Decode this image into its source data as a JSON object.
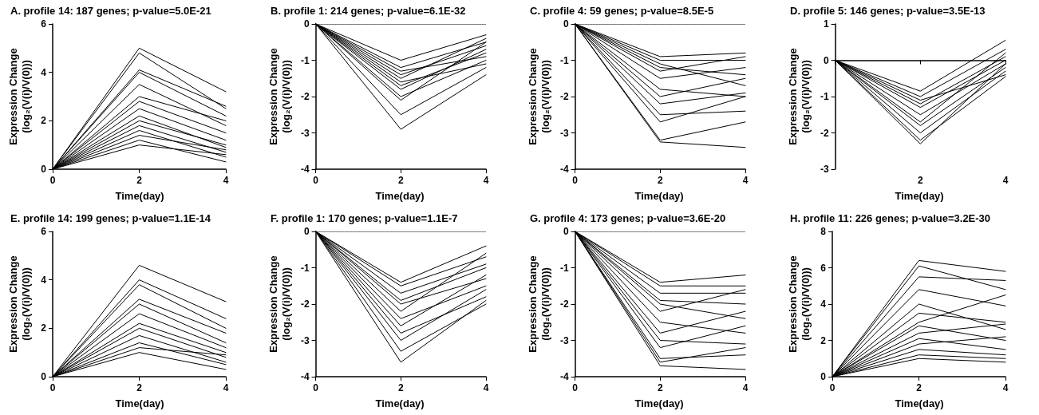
{
  "chart_data": [
    {
      "type": "line",
      "title": "A. profile 14: 187 genes; p-value=5.0E-21",
      "xlabel": "Time(day)",
      "ylabel": "Expression Change\n(log₂(V(i)/V(0)))",
      "x": [
        0,
        2,
        4
      ],
      "xlim": [
        0,
        4
      ],
      "xticks": [
        0,
        2,
        4
      ],
      "ylim": [
        0,
        6
      ],
      "yticks": [
        0,
        2,
        4,
        6
      ],
      "series": [
        {
          "color": "#000000",
          "values": [
            0,
            5.0,
            3.2
          ]
        },
        {
          "color": "#000000",
          "values": [
            0,
            4.8,
            2.5
          ]
        },
        {
          "color": "#000000",
          "values": [
            0,
            4.1,
            2.6
          ]
        },
        {
          "color": "#000000",
          "values": [
            0,
            4.0,
            2.2
          ]
        },
        {
          "color": "#000000",
          "values": [
            0,
            3.5,
            1.8
          ]
        },
        {
          "color": "#000000",
          "values": [
            0,
            3.0,
            2.0
          ]
        },
        {
          "color": "#000000",
          "values": [
            0,
            2.8,
            1.5
          ]
        },
        {
          "color": "#000000",
          "values": [
            0,
            2.5,
            1.2
          ]
        },
        {
          "color": "#000000",
          "values": [
            0,
            2.2,
            0.9
          ]
        },
        {
          "color": "#000000",
          "values": [
            0,
            2.0,
            1.0
          ]
        },
        {
          "color": "#000000",
          "values": [
            0,
            1.8,
            0.7
          ]
        },
        {
          "color": "#000000",
          "values": [
            0,
            1.6,
            0.5
          ]
        },
        {
          "color": "#000000",
          "values": [
            0,
            1.4,
            0.8
          ]
        },
        {
          "color": "#000000",
          "values": [
            0,
            1.2,
            0.3
          ]
        },
        {
          "color": "#000000",
          "values": [
            0,
            1.0,
            0.6
          ]
        }
      ]
    },
    {
      "type": "line",
      "title": "B. profile 1: 214 genes; p-value=6.1E-32",
      "xlabel": "Time(day)",
      "ylabel": "Expression Change\n(log₂(V(i)/V(0)))",
      "x": [
        0,
        2,
        4
      ],
      "xlim": [
        0,
        4
      ],
      "xticks": [
        0,
        2,
        4
      ],
      "ylim": [
        -4,
        0
      ],
      "yticks": [
        -4,
        -3,
        -2,
        -1,
        0
      ],
      "ref_lines": [
        {
          "axis": "y",
          "value": 0,
          "line_style": "dotted"
        }
      ],
      "series": [
        {
          "color": "#000000",
          "values": [
            0,
            -1.0,
            -0.3
          ]
        },
        {
          "color": "#000000",
          "values": [
            0,
            -1.2,
            -0.5
          ]
        },
        {
          "color": "#000000",
          "values": [
            0,
            -1.4,
            -0.6
          ]
        },
        {
          "color": "#000000",
          "values": [
            0,
            -1.5,
            -0.4
          ]
        },
        {
          "color": "#000000",
          "values": [
            0,
            -1.7,
            -0.8
          ]
        },
        {
          "color": "#000000",
          "values": [
            0,
            -1.8,
            -0.7
          ]
        },
        {
          "color": "#000000",
          "values": [
            0,
            -2.0,
            -1.0
          ]
        },
        {
          "color": "#000000",
          "values": [
            0,
            -2.1,
            -0.5
          ]
        },
        {
          "color": "#000000",
          "values": [
            0,
            -2.5,
            -1.2
          ]
        },
        {
          "color": "#000000",
          "values": [
            0,
            -2.9,
            -1.4
          ]
        },
        {
          "color": "#000000",
          "values": [
            0,
            -1.3,
            -0.9
          ]
        },
        {
          "color": "#000000",
          "values": [
            0,
            -1.6,
            -1.1
          ]
        }
      ]
    },
    {
      "type": "line",
      "title": "C. profile 4: 59 genes; p-value=8.5E-5",
      "xlabel": "Time(day)",
      "ylabel": "Expression Change\n(log₂(V(i)/V(0)))",
      "x": [
        0,
        2,
        4
      ],
      "xlim": [
        0,
        4
      ],
      "xticks": [
        0,
        2,
        4
      ],
      "ylim": [
        -4,
        0
      ],
      "yticks": [
        -4,
        -3,
        -2,
        -1,
        0
      ],
      "ref_lines": [
        {
          "axis": "y",
          "value": 0,
          "line_style": "dotted"
        }
      ],
      "series": [
        {
          "color": "#000000",
          "values": [
            0,
            -0.9,
            -0.8
          ]
        },
        {
          "color": "#000000",
          "values": [
            0,
            -1.0,
            -1.0
          ]
        },
        {
          "color": "#000000",
          "values": [
            0,
            -1.2,
            -1.4
          ]
        },
        {
          "color": "#000000",
          "values": [
            0,
            -1.3,
            -0.9
          ]
        },
        {
          "color": "#000000",
          "values": [
            0,
            -1.5,
            -1.2
          ]
        },
        {
          "color": "#000000",
          "values": [
            0,
            -1.8,
            -2.0
          ]
        },
        {
          "color": "#000000",
          "values": [
            0,
            -2.0,
            -1.5
          ]
        },
        {
          "color": "#000000",
          "values": [
            0,
            -2.2,
            -1.9
          ]
        },
        {
          "color": "#000000",
          "values": [
            0,
            -2.5,
            -2.4
          ]
        },
        {
          "color": "#000000",
          "values": [
            0,
            -2.7,
            -2.0
          ]
        },
        {
          "color": "#000000",
          "values": [
            0,
            -3.2,
            -2.7
          ]
        },
        {
          "color": "#000000",
          "values": [
            0,
            -3.25,
            -3.4
          ]
        },
        {
          "color": "#000000",
          "values": [
            0,
            -1.1,
            -1.7
          ]
        }
      ]
    },
    {
      "type": "line",
      "title": "D. profile 5: 146 genes; p-value=3.5E-13",
      "xlabel": "Time(day)",
      "ylabel": "Expression Change\n(log₂(V(i)/V(0)))",
      "x": [
        0,
        2,
        4
      ],
      "xlim": [
        0,
        4
      ],
      "xticks": [
        {
          "value": 0,
          "label": null
        },
        2,
        4
      ],
      "ylim": [
        -3,
        1
      ],
      "yticks": [
        -3,
        -2,
        -1,
        0,
        1
      ],
      "series": [
        {
          "color": "#000000",
          "values": [
            0,
            -0.85,
            0.55
          ]
        },
        {
          "color": "#000000",
          "values": [
            0,
            -1.0,
            0.3
          ]
        },
        {
          "color": "#000000",
          "values": [
            0,
            -1.2,
            0.1
          ]
        },
        {
          "color": "#000000",
          "values": [
            0,
            -1.3,
            0.0
          ]
        },
        {
          "color": "#000000",
          "values": [
            0,
            -1.5,
            -0.1
          ]
        },
        {
          "color": "#000000",
          "values": [
            0,
            -1.7,
            0.2
          ]
        },
        {
          "color": "#000000",
          "values": [
            0,
            -1.8,
            -0.2
          ]
        },
        {
          "color": "#000000",
          "values": [
            0,
            -2.0,
            -0.3
          ]
        },
        {
          "color": "#000000",
          "values": [
            0,
            -2.2,
            -0.45
          ]
        },
        {
          "color": "#000000",
          "values": [
            0,
            -2.3,
            -0.1
          ]
        },
        {
          "color": "#000000",
          "values": [
            0,
            -1.1,
            -0.4
          ]
        }
      ]
    },
    {
      "type": "line",
      "title": "E. profile 14: 199 genes; p-value=1.1E-14",
      "xlabel": "Time(day)",
      "ylabel": "Expression Change\n(log₂(V(i)/V(0)))",
      "x": [
        0,
        2,
        4
      ],
      "xlim": [
        0,
        4
      ],
      "xticks": [
        0,
        2,
        4
      ],
      "ylim": [
        0,
        6
      ],
      "yticks": [
        0,
        2,
        4,
        6
      ],
      "series": [
        {
          "color": "#000000",
          "values": [
            0,
            4.6,
            3.1
          ]
        },
        {
          "color": "#000000",
          "values": [
            0,
            4.0,
            2.4
          ]
        },
        {
          "color": "#000000",
          "values": [
            0,
            3.8,
            2.0
          ]
        },
        {
          "color": "#000000",
          "values": [
            0,
            3.2,
            1.8
          ]
        },
        {
          "color": "#000000",
          "values": [
            0,
            3.0,
            1.4
          ]
        },
        {
          "color": "#000000",
          "values": [
            0,
            2.6,
            1.2
          ]
        },
        {
          "color": "#000000",
          "values": [
            0,
            2.2,
            1.0
          ]
        },
        {
          "color": "#000000",
          "values": [
            0,
            2.0,
            0.8
          ]
        },
        {
          "color": "#000000",
          "values": [
            0,
            1.7,
            0.6
          ]
        },
        {
          "color": "#000000",
          "values": [
            0,
            1.4,
            0.5
          ]
        },
        {
          "color": "#000000",
          "values": [
            0,
            1.2,
            0.9
          ]
        },
        {
          "color": "#000000",
          "values": [
            0,
            1.0,
            0.3
          ]
        }
      ]
    },
    {
      "type": "line",
      "title": "F. profile 1: 170 genes; p-value=1.1E-7",
      "xlabel": "Time(day)",
      "ylabel": "Expression Change\n(log₂(V(i)/V(0)))",
      "x": [
        0,
        2,
        4
      ],
      "xlim": [
        0,
        4
      ],
      "xticks": [
        0,
        2,
        4
      ],
      "ylim": [
        -4,
        0
      ],
      "yticks": [
        -4,
        -3,
        -2,
        -1,
        0
      ],
      "ref_lines": [
        {
          "axis": "y",
          "value": 0,
          "line_style": "dotted"
        }
      ],
      "series": [
        {
          "color": "#000000",
          "values": [
            0,
            -1.4,
            -0.4
          ]
        },
        {
          "color": "#000000",
          "values": [
            0,
            -1.5,
            -0.7
          ]
        },
        {
          "color": "#000000",
          "values": [
            0,
            -1.7,
            -0.9
          ]
        },
        {
          "color": "#000000",
          "values": [
            0,
            -1.9,
            -1.0
          ]
        },
        {
          "color": "#000000",
          "values": [
            0,
            -2.0,
            -1.3
          ]
        },
        {
          "color": "#000000",
          "values": [
            0,
            -2.2,
            -0.6
          ]
        },
        {
          "color": "#000000",
          "values": [
            0,
            -2.4,
            -1.5
          ]
        },
        {
          "color": "#000000",
          "values": [
            0,
            -2.6,
            -1.2
          ]
        },
        {
          "color": "#000000",
          "values": [
            0,
            -2.8,
            -1.8
          ]
        },
        {
          "color": "#000000",
          "values": [
            0,
            -3.0,
            -1.6
          ]
        },
        {
          "color": "#000000",
          "values": [
            0,
            -3.3,
            -2.0
          ]
        },
        {
          "color": "#000000",
          "values": [
            0,
            -3.6,
            -1.9
          ]
        }
      ]
    },
    {
      "type": "line",
      "title": "G. profile 4: 173 genes; p-value=3.6E-20",
      "xlabel": "Time(day)",
      "ylabel": "Expression Change\n(log₂(V(i)/V(0)))",
      "x": [
        0,
        2,
        4
      ],
      "xlim": [
        0,
        4
      ],
      "xticks": [
        0,
        2,
        4
      ],
      "ylim": [
        -4,
        0
      ],
      "yticks": [
        -4,
        -3,
        -2,
        -1,
        0
      ],
      "ref_lines": [
        {
          "axis": "y",
          "value": 0,
          "line_style": "dotted"
        }
      ],
      "series": [
        {
          "color": "#000000",
          "values": [
            0,
            -1.4,
            -1.2
          ]
        },
        {
          "color": "#000000",
          "values": [
            0,
            -1.5,
            -1.5
          ]
        },
        {
          "color": "#000000",
          "values": [
            0,
            -1.7,
            -1.7
          ]
        },
        {
          "color": "#000000",
          "values": [
            0,
            -1.9,
            -2.0
          ]
        },
        {
          "color": "#000000",
          "values": [
            0,
            -2.0,
            -2.4
          ]
        },
        {
          "color": "#000000",
          "values": [
            0,
            -2.2,
            -1.6
          ]
        },
        {
          "color": "#000000",
          "values": [
            0,
            -2.5,
            -2.8
          ]
        },
        {
          "color": "#000000",
          "values": [
            0,
            -2.8,
            -2.2
          ]
        },
        {
          "color": "#000000",
          "values": [
            0,
            -3.0,
            -3.1
          ]
        },
        {
          "color": "#000000",
          "values": [
            0,
            -3.2,
            -2.6
          ]
        },
        {
          "color": "#000000",
          "values": [
            0,
            -3.5,
            -3.4
          ]
        },
        {
          "color": "#000000",
          "values": [
            0,
            -3.7,
            -3.8
          ]
        },
        {
          "color": "#000000",
          "values": [
            0,
            -3.6,
            -3.2
          ]
        }
      ]
    },
    {
      "type": "line",
      "title": "H. profile 11: 226 genes; p-value=3.2E-30",
      "xlabel": "Time(day)",
      "ylabel": "Expression Change\n(log₂(V(i)/V(0)))",
      "x": [
        0,
        2,
        4
      ],
      "xlim": [
        0,
        4
      ],
      "xticks": [
        0,
        2,
        4
      ],
      "ylim": [
        0,
        8
      ],
      "yticks": [
        0,
        2,
        4,
        6,
        8
      ],
      "series": [
        {
          "color": "#000000",
          "values": [
            0,
            6.4,
            5.8
          ]
        },
        {
          "color": "#000000",
          "values": [
            0,
            6.1,
            4.8
          ]
        },
        {
          "color": "#000000",
          "values": [
            0,
            5.5,
            5.3
          ]
        },
        {
          "color": "#000000",
          "values": [
            0,
            4.8,
            3.9
          ]
        },
        {
          "color": "#000000",
          "values": [
            0,
            4.0,
            2.6
          ]
        },
        {
          "color": "#000000",
          "values": [
            0,
            3.5,
            3.0
          ]
        },
        {
          "color": "#000000",
          "values": [
            0,
            3.0,
            4.5
          ]
        },
        {
          "color": "#000000",
          "values": [
            0,
            2.8,
            2.0
          ]
        },
        {
          "color": "#000000",
          "values": [
            0,
            2.4,
            2.9
          ]
        },
        {
          "color": "#000000",
          "values": [
            0,
            2.1,
            1.5
          ]
        },
        {
          "color": "#000000",
          "values": [
            0,
            1.8,
            2.2
          ]
        },
        {
          "color": "#000000",
          "values": [
            0,
            1.5,
            1.2
          ]
        },
        {
          "color": "#000000",
          "values": [
            0,
            1.2,
            1.0
          ]
        },
        {
          "color": "#000000",
          "values": [
            0,
            1.0,
            0.8
          ]
        }
      ]
    }
  ]
}
